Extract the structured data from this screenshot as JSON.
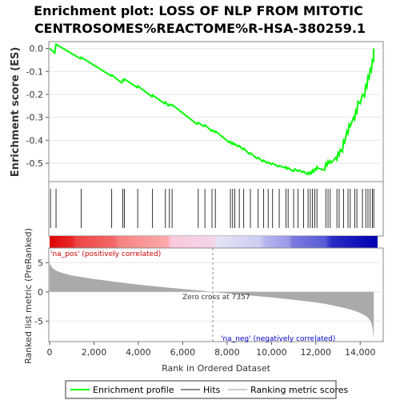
{
  "chart_data": {
    "type": "line",
    "title_line1": "Enrichment plot: LOSS OF NLP FROM MITOTIC",
    "title_line2": "CENTROSOMES%REACTOME%R-HSA-380259.1",
    "es_panel": {
      "ylabel": "Enrichment score (ES)",
      "ylim": [
        -0.58,
        0.03
      ],
      "yticks": [
        0.0,
        -0.1,
        -0.2,
        -0.3,
        -0.4,
        -0.5
      ],
      "ytick_labels": [
        "0.0",
        "-0.1",
        "-0.2",
        "-0.3",
        "-0.4",
        "-0.5"
      ],
      "series": [
        {
          "name": "Enrichment profile",
          "color": "#00ff00",
          "x": [
            0,
            230,
            290,
            1400,
            1420,
            2780,
            2800,
            3250,
            3300,
            3350,
            3370,
            3950,
            3970,
            4620,
            4640,
            5180,
            5220,
            5350,
            5400,
            5480,
            5520,
            6650,
            6700,
            6950,
            7000,
            7300,
            7320,
            7450,
            7470,
            8100,
            8150,
            8200,
            8250,
            8300,
            8350,
            8500,
            8550,
            8700,
            8750,
            9000,
            9050,
            9350,
            9400,
            9600,
            9650,
            9800,
            9850,
            10000,
            10050,
            10300,
            10350,
            10600,
            10650,
            10700,
            10750,
            10900,
            11000,
            11050,
            11200,
            11250,
            11400,
            11450,
            11600,
            11650,
            11700,
            11750,
            11800,
            11850,
            11900,
            11950,
            12000,
            12050,
            12100,
            12400,
            12450,
            12500,
            12550,
            12600,
            12650,
            12700,
            12900,
            12950,
            13000,
            13050,
            13100,
            13200,
            13250,
            13300,
            13400,
            13450,
            13500,
            13550,
            13700,
            13750,
            13800,
            13850,
            13900,
            14000,
            14100,
            14200,
            14250,
            14300,
            14350,
            14400,
            14450,
            14500,
            14550,
            14600,
            14610
          ],
          "y": [
            0.0,
            -0.02,
            0.018,
            -0.045,
            -0.038,
            -0.12,
            -0.115,
            -0.15,
            -0.137,
            -0.14,
            -0.133,
            -0.17,
            -0.163,
            -0.21,
            -0.203,
            -0.24,
            -0.233,
            -0.25,
            -0.243,
            -0.248,
            -0.245,
            -0.33,
            -0.323,
            -0.34,
            -0.333,
            -0.36,
            -0.355,
            -0.365,
            -0.36,
            -0.41,
            -0.405,
            -0.415,
            -0.41,
            -0.42,
            -0.415,
            -0.428,
            -0.423,
            -0.44,
            -0.435,
            -0.46,
            -0.455,
            -0.48,
            -0.475,
            -0.492,
            -0.487,
            -0.5,
            -0.495,
            -0.505,
            -0.5,
            -0.515,
            -0.51,
            -0.52,
            -0.515,
            -0.525,
            -0.52,
            -0.53,
            -0.535,
            -0.525,
            -0.535,
            -0.53,
            -0.54,
            -0.535,
            -0.548,
            -0.54,
            -0.548,
            -0.538,
            -0.545,
            -0.53,
            -0.538,
            -0.525,
            -0.53,
            -0.515,
            -0.522,
            -0.53,
            -0.5,
            -0.51,
            -0.49,
            -0.5,
            -0.49,
            -0.498,
            -0.475,
            -0.485,
            -0.455,
            -0.465,
            -0.44,
            -0.45,
            -0.4,
            -0.41,
            -0.36,
            -0.37,
            -0.33,
            -0.34,
            -0.3,
            -0.31,
            -0.27,
            -0.28,
            -0.23,
            -0.24,
            -0.2,
            -0.21,
            -0.16,
            -0.17,
            -0.12,
            -0.13,
            -0.09,
            -0.1,
            -0.05,
            -0.06,
            0.0
          ]
        }
      ]
    },
    "hits": [
      40,
      290,
      1420,
      2800,
      3300,
      3370,
      3970,
      4640,
      5220,
      5400,
      5520,
      6700,
      7000,
      7320,
      7470,
      8150,
      8250,
      8350,
      8550,
      8750,
      9050,
      9400,
      9650,
      9850,
      10050,
      10350,
      10650,
      10750,
      11000,
      11200,
      11450,
      11650,
      11750,
      11850,
      11950,
      12050,
      12450,
      12550,
      12650,
      12950,
      13050,
      13250,
      13450,
      13550,
      13750,
      13850,
      14100,
      14250,
      14350,
      14450,
      14550,
      14610
    ],
    "rank_panel": {
      "ylabel": "Ranked list metric (PreRanked)",
      "ylim": [
        -8.5,
        7.5
      ],
      "yticks": [
        5,
        0,
        -5
      ],
      "ytick_labels": [
        "5",
        "0",
        "-5"
      ],
      "zero_cross_label": "Zero cross at 7357",
      "zero_cross": 7357,
      "pos_label": "'na_pos' (positively correlated)",
      "neg_label": "'na_neg' (negatively correlated)",
      "color": "#aaaaaa",
      "x": [
        0,
        50,
        150,
        300,
        600,
        1000,
        1500,
        2000,
        3000,
        4000,
        5000,
        6000,
        7000,
        7357,
        8000,
        9000,
        10000,
        11000,
        12000,
        12500,
        13000,
        13500,
        13800,
        14000,
        14200,
        14350,
        14450,
        14520,
        14570,
        14610
      ],
      "y": [
        5.0,
        4.5,
        4.0,
        3.6,
        3.2,
        2.8,
        2.5,
        2.2,
        1.7,
        1.25,
        0.85,
        0.5,
        0.15,
        0.0,
        -0.25,
        -0.6,
        -0.95,
        -1.35,
        -1.8,
        -2.1,
        -2.5,
        -2.95,
        -3.3,
        -3.6,
        -4.0,
        -4.4,
        -4.9,
        -5.5,
        -6.5,
        -8.2
      ]
    },
    "xaxis": {
      "label": "Rank in Ordered Dataset",
      "xlim": [
        0,
        15000
      ],
      "ticks": [
        0,
        2000,
        4000,
        6000,
        8000,
        10000,
        12000,
        14000
      ],
      "tick_labels": [
        "0",
        "2,000",
        "4,000",
        "6,000",
        "8,000",
        "10,000",
        "12,000",
        "14,000"
      ],
      "n": 14610
    },
    "legend": {
      "placement": "bottom",
      "entries": [
        {
          "label": "Enrichment profile",
          "color": "#00ff00"
        },
        {
          "label": "Hits",
          "color": "#888888"
        },
        {
          "label": "Ranking metric scores",
          "color": "#cccccc"
        }
      ]
    }
  }
}
